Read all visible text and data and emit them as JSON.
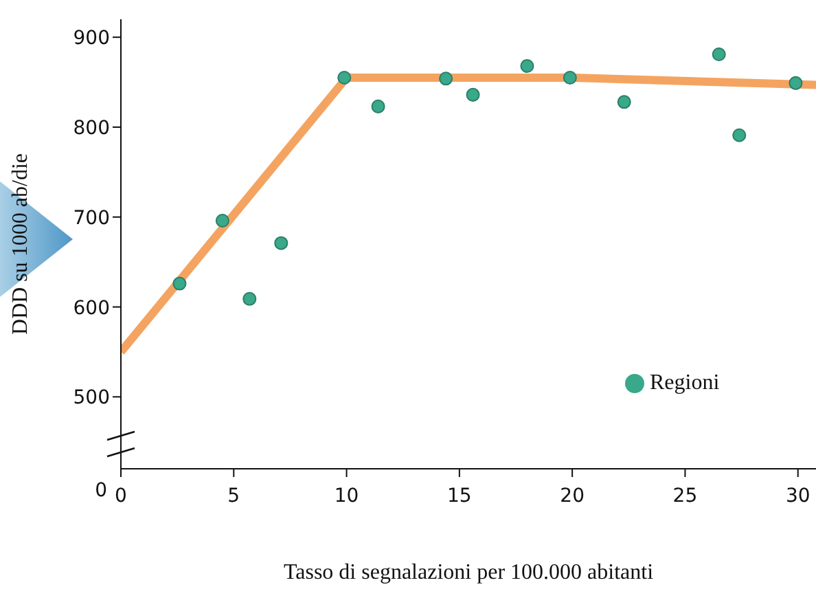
{
  "chart_data": {
    "type": "scatter",
    "xlabel": "Tasso di segnalazioni per 100.000 abitanti",
    "ylabel": "DDD su 1000 ab/die",
    "xlim": [
      0,
      30.8
    ],
    "xticks": [
      0,
      5,
      10,
      15,
      20,
      25,
      30
    ],
    "ylim": [
      420,
      920
    ],
    "yticks": [
      500,
      600,
      700,
      800,
      900
    ],
    "legend": "bottom right",
    "annotations": [
      "0"
    ],
    "series": [
      {
        "name": "Regioni",
        "color": "#3aa88a",
        "marker": "circle",
        "x": [
          2.6,
          4.5,
          5.7,
          7.1,
          9.9,
          11.4,
          14.4,
          15.6,
          18.0,
          19.9,
          22.3,
          26.5,
          27.4,
          29.9
        ],
        "values": [
          626,
          696,
          609,
          671,
          855,
          823,
          854,
          836,
          868,
          855,
          828,
          881,
          791,
          849
        ]
      },
      {
        "type": "line",
        "color": "#f4a460",
        "marker": "none",
        "x": [
          0,
          10,
          20,
          30.8
        ],
        "values": [
          550,
          855,
          855,
          847
        ]
      }
    ]
  }
}
